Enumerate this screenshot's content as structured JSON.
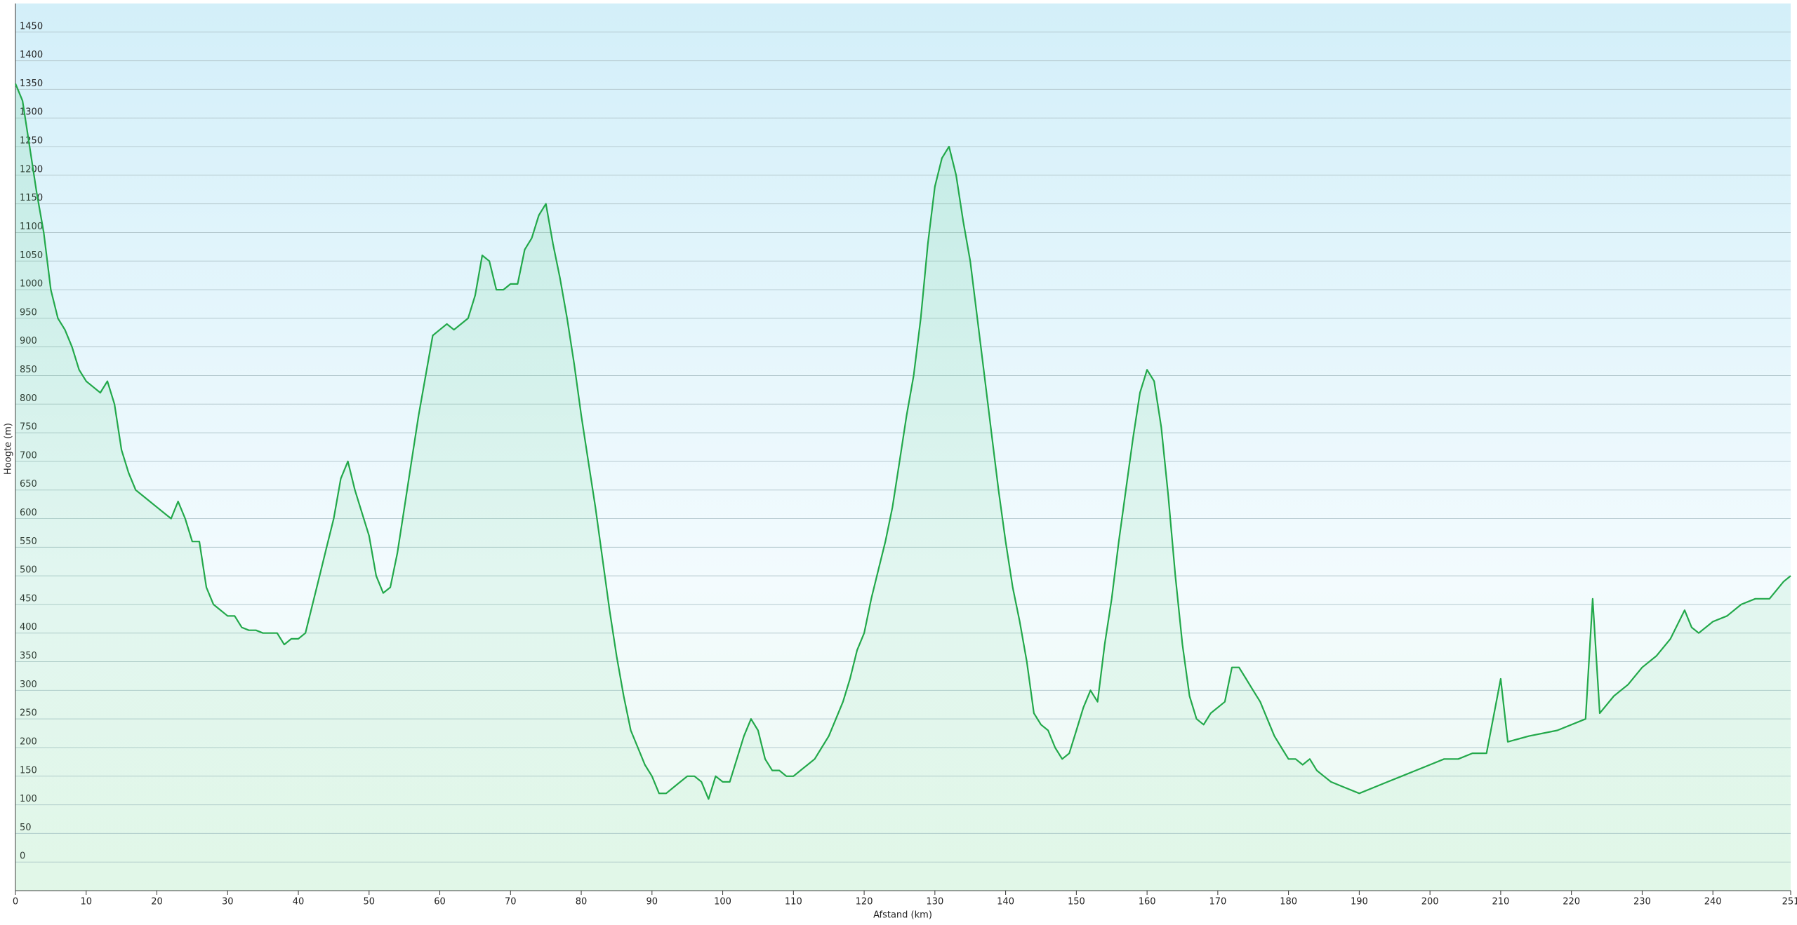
{
  "chart_data": {
    "type": "area",
    "x_label": "Afstand  (km)",
    "y_label": "Hoogte (m)",
    "xlim": [
      0,
      251
    ],
    "ylim": [
      -50,
      1500
    ],
    "xticks": [
      0,
      10,
      20,
      30,
      40,
      50,
      60,
      70,
      80,
      90,
      100,
      110,
      120,
      130,
      140,
      150,
      160,
      170,
      180,
      190,
      200,
      210,
      220,
      230,
      240,
      251
    ],
    "yticks": [
      0,
      50,
      100,
      150,
      200,
      250,
      300,
      350,
      400,
      450,
      500,
      550,
      600,
      650,
      700,
      750,
      800,
      850,
      900,
      950,
      1000,
      1050,
      1100,
      1150,
      1200,
      1250,
      1300,
      1350,
      1400,
      1450
    ],
    "grid": true,
    "series": [
      {
        "color": "#22a84a",
        "x": [
          0,
          1,
          2,
          3,
          4,
          5,
          6,
          7,
          8,
          9,
          10,
          11,
          12,
          13,
          14,
          15,
          16,
          17,
          18,
          19,
          20,
          21,
          22,
          23,
          24,
          25,
          26,
          27,
          28,
          29,
          30,
          31,
          32,
          33,
          34,
          35,
          36,
          37,
          38,
          39,
          40,
          41,
          42,
          43,
          44,
          45,
          46,
          47,
          48,
          49,
          50,
          51,
          52,
          53,
          54,
          55,
          56,
          57,
          58,
          59,
          60,
          61,
          62,
          63,
          64,
          65,
          66,
          67,
          68,
          69,
          70,
          71,
          72,
          73,
          74,
          75,
          76,
          77,
          78,
          79,
          80,
          81,
          82,
          83,
          84,
          85,
          86,
          87,
          88,
          89,
          90,
          91,
          92,
          93,
          94,
          95,
          96,
          97,
          98,
          99,
          100,
          101,
          102,
          103,
          104,
          105,
          106,
          107,
          108,
          109,
          110,
          111,
          112,
          113,
          114,
          115,
          116,
          117,
          118,
          119,
          120,
          121,
          122,
          123,
          124,
          125,
          126,
          127,
          128,
          129,
          130,
          131,
          132,
          133,
          134,
          135,
          136,
          137,
          138,
          139,
          140,
          141,
          142,
          143,
          144,
          145,
          146,
          147,
          148,
          149,
          150,
          151,
          152,
          153,
          154,
          155,
          156,
          157,
          158,
          159,
          160,
          161,
          162,
          163,
          164,
          165,
          166,
          167,
          168,
          169,
          170,
          171,
          172,
          173,
          174,
          175,
          176,
          177,
          178,
          179,
          180,
          181,
          182,
          183,
          184,
          185,
          186,
          188,
          190,
          192,
          194,
          196,
          198,
          200,
          202,
          204,
          206,
          208,
          210,
          211,
          214,
          218,
          222,
          223,
          224,
          226,
          228,
          230,
          232,
          234,
          236,
          237,
          238,
          240,
          242,
          244,
          246,
          248,
          250,
          251
        ],
        "values": [
          1360,
          1330,
          1250,
          1170,
          1100,
          1000,
          950,
          930,
          900,
          860,
          840,
          830,
          820,
          840,
          800,
          720,
          680,
          650,
          640,
          630,
          620,
          610,
          600,
          630,
          600,
          560,
          560,
          480,
          450,
          440,
          430,
          430,
          410,
          405,
          405,
          400,
          400,
          400,
          380,
          390,
          390,
          400,
          450,
          500,
          550,
          600,
          670,
          700,
          650,
          610,
          570,
          500,
          470,
          480,
          540,
          620,
          700,
          780,
          850,
          920,
          930,
          940,
          930,
          940,
          950,
          990,
          1060,
          1050,
          1000,
          1000,
          1010,
          1010,
          1070,
          1090,
          1130,
          1150,
          1080,
          1020,
          950,
          870,
          780,
          700,
          620,
          530,
          440,
          360,
          290,
          230,
          200,
          170,
          150,
          120,
          120,
          130,
          140,
          150,
          150,
          140,
          110,
          150,
          140,
          140,
          180,
          220,
          250,
          230,
          180,
          160,
          160,
          150,
          150,
          160,
          170,
          180,
          200,
          220,
          250,
          280,
          320,
          370,
          400,
          460,
          510,
          560,
          620,
          700,
          780,
          850,
          950,
          1080,
          1180,
          1230,
          1250,
          1200,
          1120,
          1050,
          950,
          850,
          750,
          650,
          560,
          480,
          420,
          350,
          260,
          240,
          230,
          200,
          180,
          190,
          230,
          270,
          300,
          280,
          380,
          460,
          560,
          650,
          740,
          820,
          860,
          840,
          760,
          640,
          500,
          380,
          290,
          250,
          240,
          260,
          270,
          280,
          340,
          340,
          320,
          300,
          280,
          250,
          220,
          200,
          180,
          180,
          170,
          180,
          160,
          150,
          140,
          130,
          120,
          130,
          140,
          150,
          160,
          170,
          180,
          180,
          190,
          190,
          320,
          210,
          220,
          230,
          250,
          460,
          260,
          290,
          310,
          340,
          360,
          390,
          440,
          410,
          400,
          420,
          430,
          450,
          460,
          460,
          490,
          500
        ]
      }
    ]
  }
}
